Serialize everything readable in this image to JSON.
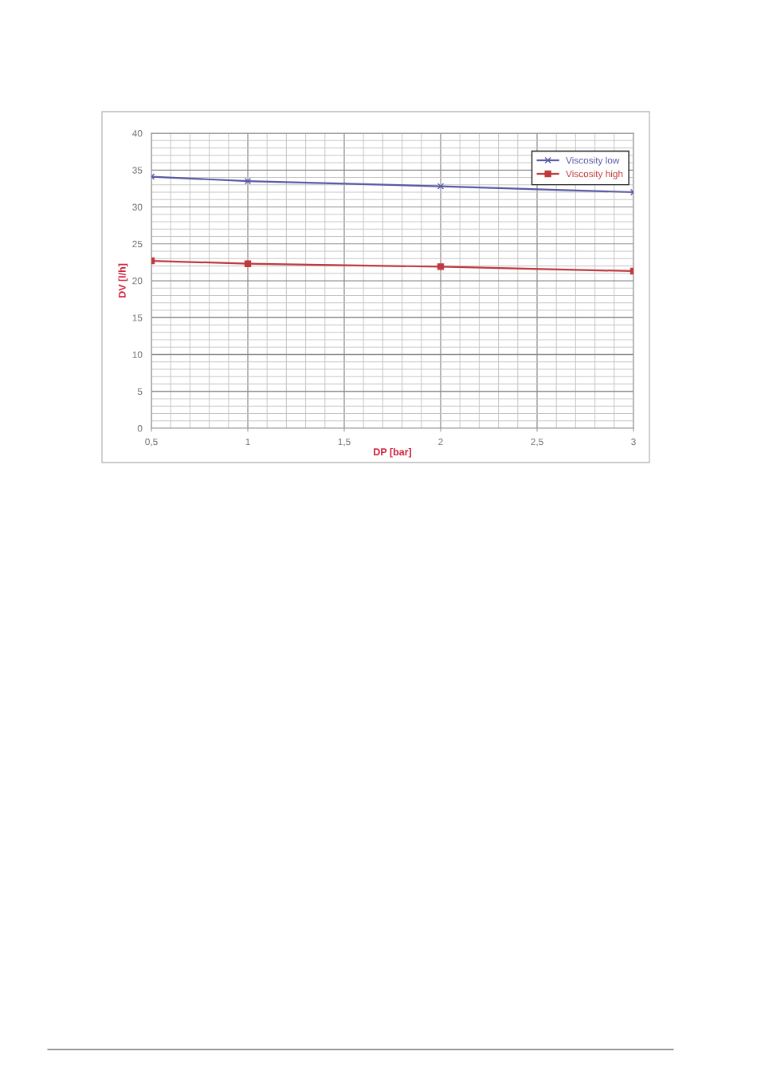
{
  "chart_data": {
    "type": "line",
    "xlabel": "DP [bar]",
    "ylabel": "DV [l/h]",
    "x": [
      0.5,
      1,
      2,
      3
    ],
    "series": [
      {
        "name": "Viscosity low",
        "color": "#5a5aa6",
        "marker": "cross",
        "values": [
          34.1,
          33.5,
          32.8,
          32.0
        ]
      },
      {
        "name": "Viscosity high",
        "color": "#c0393f",
        "marker": "square",
        "values": [
          22.7,
          22.3,
          21.9,
          21.3
        ]
      }
    ],
    "xlim": [
      0.5,
      3
    ],
    "xticks": [
      {
        "value": 0.5,
        "label": "0,5"
      },
      1,
      {
        "value": 1.5,
        "label": "1,5"
      },
      2,
      {
        "value": 2.5,
        "label": "2,5"
      },
      3
    ],
    "ylim": [
      0,
      40
    ],
    "yticks": [
      0,
      5,
      10,
      15,
      20,
      25,
      30,
      35,
      40
    ],
    "grid": true,
    "legend": "top right",
    "line_style": "solid"
  }
}
